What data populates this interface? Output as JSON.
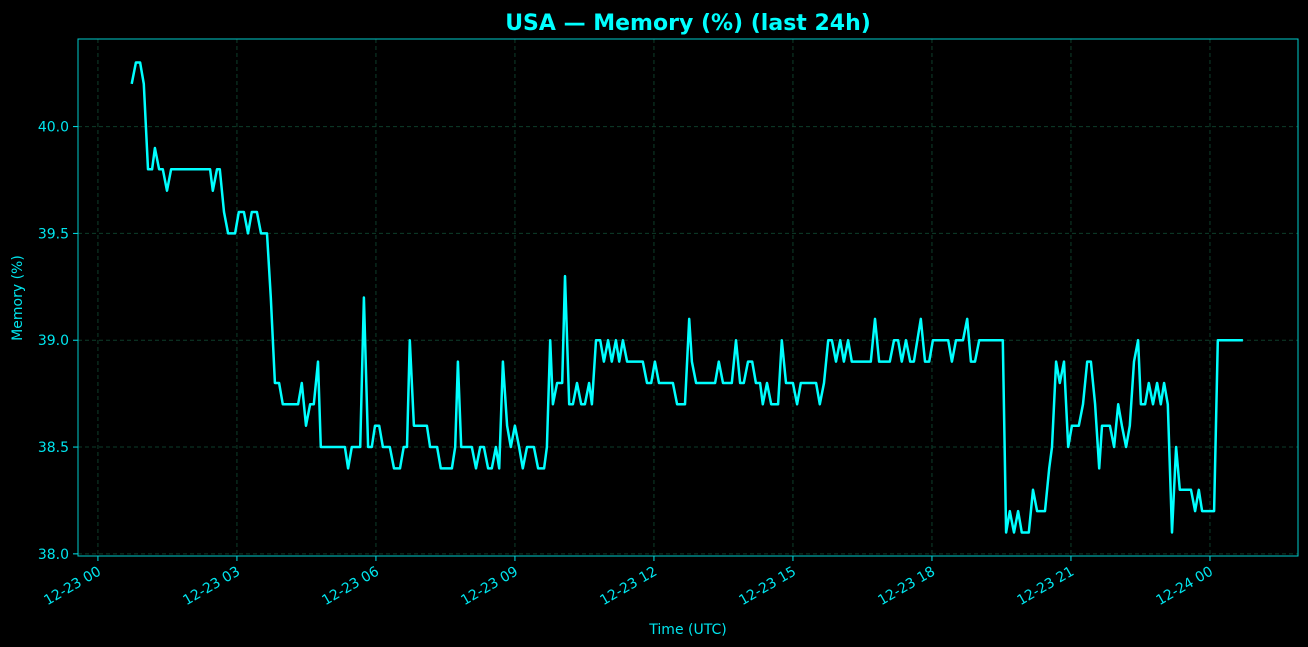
{
  "chart_data": {
    "type": "line",
    "title": "USA — Memory (%) (last 24h)",
    "xlabel": "Time (UTC)",
    "ylabel": "Memory (%)",
    "color": "#00ffff",
    "grid": true,
    "xlim": [
      -0.43,
      25.9
    ],
    "ylim": [
      37.99,
      40.41
    ],
    "xticks": [
      {
        "value": 0,
        "label": "12-23 00"
      },
      {
        "value": 3,
        "label": "12-23 03"
      },
      {
        "value": 6,
        "label": "12-23 06"
      },
      {
        "value": 9,
        "label": "12-23 09"
      },
      {
        "value": 12,
        "label": "12-23 12"
      },
      {
        "value": 15,
        "label": "12-23 15"
      },
      {
        "value": 18,
        "label": "12-23 18"
      },
      {
        "value": 21,
        "label": "12-23 21"
      },
      {
        "value": 24,
        "label": "12-24 00"
      }
    ],
    "yticks": [
      {
        "value": 38,
        "label": "38.0"
      },
      38.5,
      {
        "value": 39,
        "label": "39.0"
      },
      39.5,
      {
        "value": 40,
        "label": "40.0"
      }
    ],
    "x": [
      0.73,
      0.82,
      0.91,
      0.99,
      1.08,
      1.17,
      1.23,
      1.32,
      1.4,
      1.49,
      1.58,
      2.42,
      2.48,
      2.57,
      2.63,
      2.72,
      2.81,
      2.96,
      3.04,
      3.15,
      3.24,
      3.32,
      3.43,
      3.52,
      3.65,
      3.73,
      3.82,
      3.91,
      3.99,
      4.32,
      4.4,
      4.49,
      4.58,
      4.66,
      4.75,
      4.81,
      5.33,
      5.4,
      5.48,
      5.66,
      5.74,
      5.83,
      5.91,
      5.98,
      6.07,
      6.15,
      6.3,
      6.39,
      6.52,
      6.6,
      6.67,
      6.73,
      6.82,
      7.1,
      7.17,
      7.32,
      7.4,
      7.64,
      7.71,
      7.77,
      7.84,
      8.07,
      8.16,
      8.25,
      8.33,
      8.42,
      8.5,
      8.59,
      8.66,
      8.74,
      8.83,
      8.91,
      9.0,
      9.09,
      9.17,
      9.26,
      9.41,
      9.5,
      9.63,
      9.69,
      9.76,
      9.82,
      9.91,
      10.02,
      10.08,
      10.17,
      10.25,
      10.34,
      10.43,
      10.51,
      10.6,
      10.66,
      10.75,
      10.84,
      10.92,
      11.01,
      11.09,
      11.18,
      11.25,
      11.33,
      11.42,
      11.76,
      11.85,
      11.94,
      12.02,
      12.11,
      12.41,
      12.5,
      12.67,
      12.76,
      12.82,
      12.91,
      13.32,
      13.4,
      13.49,
      13.68,
      13.77,
      13.86,
      13.94,
      14.03,
      14.12,
      14.2,
      14.29,
      14.35,
      14.44,
      14.53,
      14.68,
      14.76,
      14.85,
      15.0,
      15.09,
      15.17,
      15.5,
      15.58,
      15.67,
      15.76,
      15.84,
      15.93,
      16.02,
      16.1,
      16.19,
      16.27,
      16.68,
      16.77,
      16.86,
      17.09,
      17.18,
      17.27,
      17.35,
      17.44,
      17.53,
      17.61,
      17.76,
      17.85,
      17.94,
      18.02,
      18.35,
      18.43,
      18.52,
      18.67,
      18.76,
      18.84,
      18.93,
      19.02,
      19.53,
      19.6,
      19.68,
      19.77,
      19.86,
      19.94,
      20.09,
      20.18,
      20.27,
      20.44,
      20.53,
      20.59,
      20.68,
      20.76,
      20.85,
      20.94,
      21.02,
      21.17,
      21.26,
      21.35,
      21.43,
      21.52,
      21.61,
      21.67,
      21.84,
      21.93,
      22.02,
      22.1,
      22.19,
      22.27,
      22.36,
      22.45,
      22.51,
      22.6,
      22.68,
      22.77,
      22.86,
      22.94,
      23.01,
      23.09,
      23.18,
      23.27,
      23.35,
      23.59,
      23.68,
      23.76,
      23.83,
      24.09,
      24.17,
      24.71
    ],
    "values": [
      40.2,
      40.3,
      40.3,
      40.2,
      39.8,
      39.8,
      39.9,
      39.8,
      39.8,
      39.7,
      39.8,
      39.8,
      39.7,
      39.8,
      39.8,
      39.6,
      39.5,
      39.5,
      39.6,
      39.6,
      39.5,
      39.6,
      39.6,
      39.5,
      39.5,
      39.2,
      38.8,
      38.8,
      38.7,
      38.7,
      38.8,
      38.6,
      38.7,
      38.7,
      38.9,
      38.5,
      38.5,
      38.4,
      38.5,
      38.5,
      39.2,
      38.5,
      38.5,
      38.6,
      38.6,
      38.5,
      38.5,
      38.4,
      38.4,
      38.5,
      38.5,
      39.0,
      38.6,
      38.6,
      38.5,
      38.5,
      38.4,
      38.4,
      38.5,
      38.9,
      38.5,
      38.5,
      38.4,
      38.5,
      38.5,
      38.4,
      38.4,
      38.5,
      38.4,
      38.9,
      38.6,
      38.5,
      38.6,
      38.5,
      38.4,
      38.5,
      38.5,
      38.4,
      38.4,
      38.5,
      39.0,
      38.7,
      38.8,
      38.8,
      39.3,
      38.7,
      38.7,
      38.8,
      38.7,
      38.7,
      38.8,
      38.7,
      39.0,
      39.0,
      38.9,
      39.0,
      38.9,
      39.0,
      38.9,
      39.0,
      38.9,
      38.9,
      38.8,
      38.8,
      38.9,
      38.8,
      38.8,
      38.7,
      38.7,
      39.1,
      38.9,
      38.8,
      38.8,
      38.9,
      38.8,
      38.8,
      39.0,
      38.8,
      38.8,
      38.9,
      38.9,
      38.8,
      38.8,
      38.7,
      38.8,
      38.7,
      38.7,
      39.0,
      38.8,
      38.8,
      38.7,
      38.8,
      38.8,
      38.7,
      38.8,
      39.0,
      39.0,
      38.9,
      39.0,
      38.9,
      39.0,
      38.9,
      38.9,
      39.1,
      38.9,
      38.9,
      39.0,
      39.0,
      38.9,
      39.0,
      38.9,
      38.9,
      39.1,
      38.9,
      38.9,
      39.0,
      39.0,
      38.9,
      39.0,
      39.0,
      39.1,
      38.9,
      38.9,
      39.0,
      39.0,
      38.1,
      38.2,
      38.1,
      38.2,
      38.1,
      38.1,
      38.3,
      38.2,
      38.2,
      38.4,
      38.5,
      38.9,
      38.8,
      38.9,
      38.5,
      38.6,
      38.6,
      38.7,
      38.9,
      38.9,
      38.7,
      38.4,
      38.6,
      38.6,
      38.5,
      38.7,
      38.6,
      38.5,
      38.6,
      38.9,
      39.0,
      38.7,
      38.7,
      38.8,
      38.7,
      38.8,
      38.7,
      38.8,
      38.7,
      38.1,
      38.5,
      38.3,
      38.3,
      38.2,
      38.3,
      38.2,
      38.2,
      39.0,
      39.0
    ]
  }
}
